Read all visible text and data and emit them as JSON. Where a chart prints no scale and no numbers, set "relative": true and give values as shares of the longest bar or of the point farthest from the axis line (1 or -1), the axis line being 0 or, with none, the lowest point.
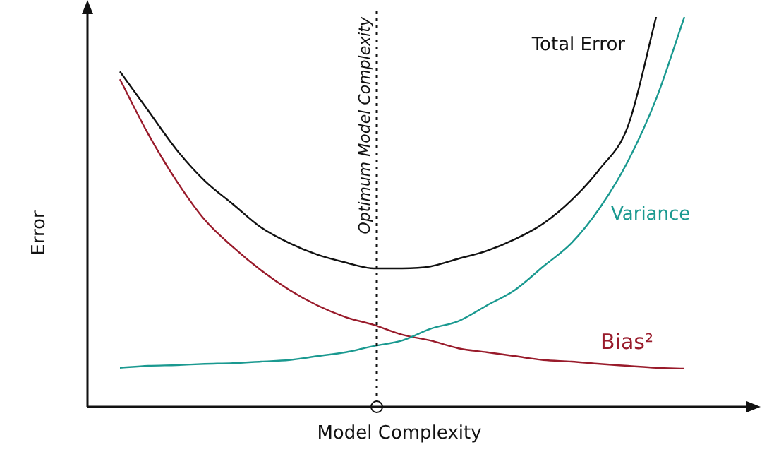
{
  "chart_data": {
    "type": "line",
    "xlabel": "Model Complexity",
    "ylabel": "Error",
    "relative": true,
    "tick_labels": false,
    "grid": false,
    "legend": false,
    "marker": "none",
    "line_style": "solid",
    "categories": [
      null,
      null,
      null,
      null,
      null,
      null,
      null,
      null,
      null,
      null,
      null,
      null,
      null,
      null,
      null,
      null,
      null,
      null,
      null,
      null,
      null
    ],
    "series": [
      {
        "name": "Total Error",
        "color": "#111111",
        "values": [
          0.86,
          0.76,
          0.66,
          0.58,
          0.52,
          0.46,
          0.42,
          0.39,
          0.37,
          0.355,
          0.355,
          0.36,
          0.38,
          0.4,
          0.43,
          0.47,
          0.53,
          0.61,
          0.72,
          1.0,
          null
        ]
      },
      {
        "name": "Variance",
        "color": "#1a9990",
        "values": [
          0.1,
          0.105,
          0.107,
          0.11,
          0.112,
          0.116,
          0.12,
          0.13,
          0.14,
          0.156,
          0.17,
          0.2,
          0.22,
          0.26,
          0.3,
          0.36,
          0.42,
          0.51,
          0.63,
          0.79,
          1.0
        ]
      },
      {
        "name": "Bias²",
        "color": "#991b2b",
        "values": [
          0.84,
          0.7,
          0.58,
          0.48,
          0.41,
          0.35,
          0.3,
          0.26,
          0.23,
          0.21,
          0.185,
          0.17,
          0.15,
          0.14,
          0.13,
          0.12,
          0.116,
          0.11,
          0.105,
          0.1,
          0.098
        ]
      }
    ],
    "annotations": [
      "Optimum Model Complexity"
    ]
  }
}
